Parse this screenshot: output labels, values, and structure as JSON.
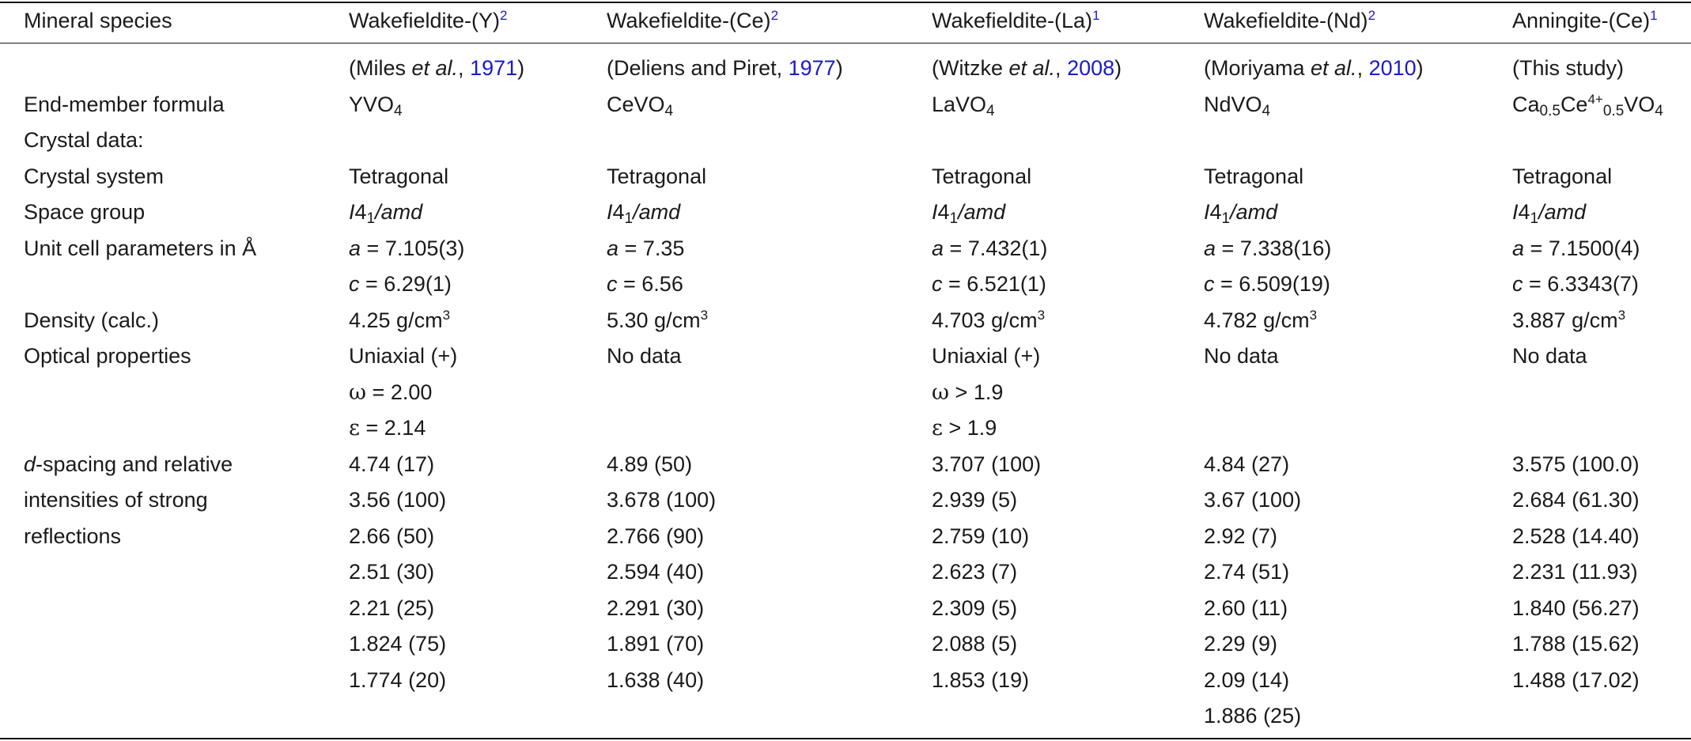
{
  "headers": [
    {
      "label": "Mineral species",
      "fn": ""
    },
    {
      "label": "Wakefieldite-(Y)",
      "fn": "2"
    },
    {
      "label": "Wakefieldite-(Ce)",
      "fn": "2"
    },
    {
      "label": "Wakefieldite-(La)",
      "fn": "1"
    },
    {
      "label": "Wakefieldite-(Nd)",
      "fn": "2"
    },
    {
      "label": "Anningite-(Ce)",
      "fn": "1"
    }
  ],
  "references": [
    {
      "pre": "(Miles ",
      "etal": "et al.",
      "sep": ", ",
      "year": "1971",
      "post": ")"
    },
    {
      "pre": "(Deliens and Piret, ",
      "etal": "",
      "sep": "",
      "year": "1977",
      "post": ")"
    },
    {
      "pre": "(Witzke ",
      "etal": "et al.",
      "sep": ", ",
      "year": "2008",
      "post": ")"
    },
    {
      "pre": "(Moriyama ",
      "etal": "et al.",
      "sep": ", ",
      "year": "2010",
      "post": ")"
    },
    {
      "pre": "(This study)",
      "etal": "",
      "sep": "",
      "year": "",
      "post": ""
    }
  ],
  "labels": {
    "formula": "End-member formula",
    "crystal_data": "Crystal data:",
    "crystal_system": "Crystal system",
    "space_group": "Space group",
    "unit_cell": "Unit cell parameters in Å",
    "density": "Density (calc.)",
    "optical": "Optical properties",
    "dspacing_d": "d",
    "dspacing_rest": "-spacing and relative",
    "dspacing_2": "intensities of strong",
    "dspacing_3": "reflections"
  },
  "formulas": [
    {
      "pre": "YVO",
      "sub": "4"
    },
    {
      "pre": "CeVO",
      "sub": "4"
    },
    {
      "pre": "LaVO",
      "sub": "4"
    },
    {
      "pre": "NdVO",
      "sub": "4"
    }
  ],
  "anningite_formula": {
    "ca": "Ca",
    "ca_sub": "0.5",
    "ce": "Ce",
    "ce_sup": "4+",
    "ce_sub": "0.5",
    "rest": "VO",
    "rest_sub": "4"
  },
  "crystal_system": [
    "Tetragonal",
    "Tetragonal",
    "Tetragonal",
    "Tetragonal",
    "Tetragonal"
  ],
  "space_group": {
    "a": "I",
    "b": "4",
    "sub": "1",
    "c": "/amd"
  },
  "unit_cell_a": [
    "7.105(3)",
    "7.35",
    "7.432(1)",
    "7.338(16)",
    "7.1500(4)"
  ],
  "unit_cell_c": [
    "6.29(1)",
    "6.56",
    "6.521(1)",
    "6.509(19)",
    "6.3343(7)"
  ],
  "density": [
    "4.25 g/cm",
    "5.30 g/cm",
    "4.703 g/cm",
    "4.782 g/cm",
    "3.887 g/cm"
  ],
  "density_sup": "3",
  "optical": [
    "Uniaxial (+)",
    "No data",
    "Uniaxial (+)",
    "No data",
    "No data"
  ],
  "omega": {
    "y_op": " = ",
    "y_val": "2.00",
    "la_op": " > ",
    "la_val": "1.9",
    "sym": "ω"
  },
  "epsilon": {
    "y_op": " = ",
    "y_val": "2.14",
    "la_op": " > ",
    "la_val": "1.9",
    "sym": "ε"
  },
  "dspacing": [
    [
      "4.74 (17)",
      "4.89 (50)",
      "3.707 (100)",
      "4.84 (27)",
      "3.575 (100.0)"
    ],
    [
      "3.56 (100)",
      "3.678 (100)",
      "2.939 (5)",
      "3.67 (100)",
      "2.684 (61.30)"
    ],
    [
      "2.66 (50)",
      "2.766 (90)",
      "2.759 (10)",
      "2.92 (7)",
      "2.528 (14.40)"
    ],
    [
      "2.51 (30)",
      "2.594 (40)",
      "2.623 (7)",
      "2.74 (51)",
      "2.231 (11.93)"
    ],
    [
      "2.21 (25)",
      "2.291 (30)",
      "2.309 (5)",
      "2.60 (11)",
      "1.840 (56.27)"
    ],
    [
      "1.824 (75)",
      "1.891 (70)",
      "2.088 (5)",
      "2.29 (9)",
      "1.788 (15.62)"
    ],
    [
      "1.774 (20)",
      "1.638 (40)",
      "1.853 (19)",
      "2.09 (14)",
      "1.488 (17.02)"
    ],
    [
      "",
      "",
      "",
      "1.886 (25)",
      ""
    ]
  ]
}
